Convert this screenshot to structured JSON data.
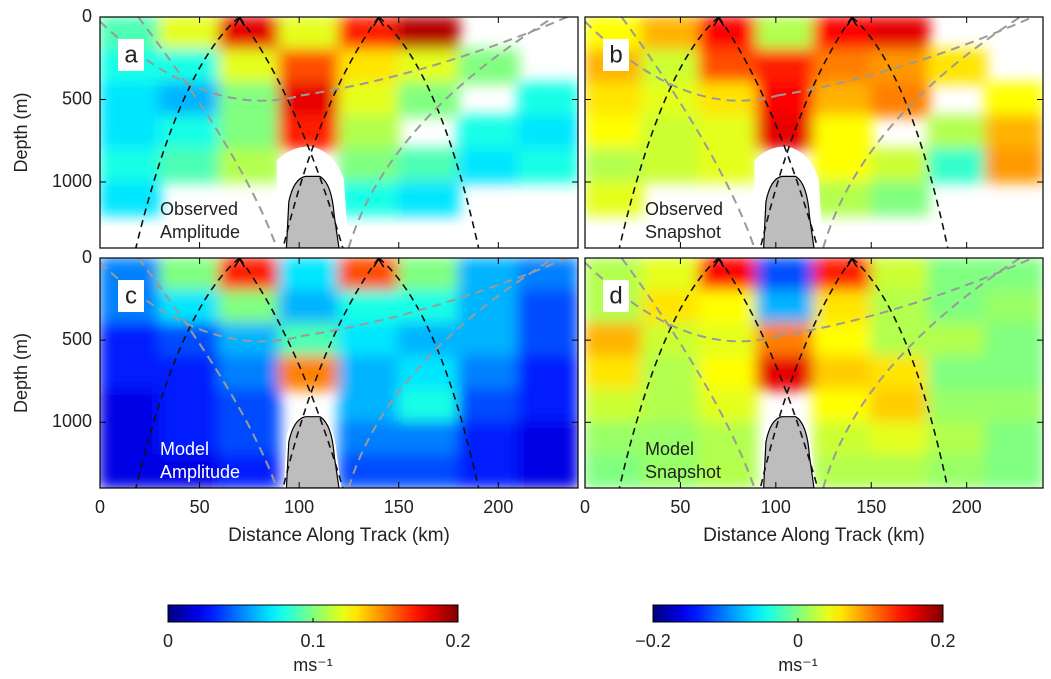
{
  "chart_data": [
    {
      "type": "heatmap",
      "panel_label": "a",
      "annotation": [
        "Observed",
        "Amplitude"
      ],
      "annotation_color": "#222222",
      "ylabel": "Depth (m)",
      "colormap": "jet",
      "clim": [
        0,
        0.2
      ],
      "x": [
        15,
        45,
        75,
        105,
        135,
        165,
        195,
        225
      ],
      "y": [
        100,
        300,
        500,
        700,
        900,
        1100,
        1300
      ],
      "z": [
        [
          0.09,
          0.12,
          0.18,
          0.12,
          0.17,
          0.19,
          null,
          null
        ],
        [
          0.08,
          0.08,
          0.12,
          0.16,
          0.13,
          0.12,
          0.1,
          null
        ],
        [
          0.07,
          0.06,
          0.1,
          0.18,
          0.12,
          0.1,
          null,
          0.08
        ],
        [
          0.07,
          0.08,
          0.1,
          0.17,
          0.11,
          null,
          0.08,
          0.07
        ],
        [
          0.08,
          0.09,
          0.11,
          null,
          0.1,
          0.09,
          0.07,
          0.08
        ],
        [
          0.07,
          null,
          null,
          null,
          0.08,
          0.07,
          null,
          null
        ],
        [
          null,
          null,
          null,
          null,
          null,
          null,
          null,
          null
        ]
      ],
      "xlim": [
        0,
        240
      ],
      "ylim": [
        0,
        1400
      ],
      "y_inverted": true,
      "xticks": [
        0,
        50,
        100,
        150,
        200
      ],
      "yticks": [
        0,
        500,
        1000
      ],
      "xtick_labels": false,
      "ytick_labels": true
    },
    {
      "type": "heatmap",
      "panel_label": "b",
      "annotation": [
        "Observed",
        "Snapshot"
      ],
      "annotation_color": "#222222",
      "colormap": "jet",
      "clim": [
        -0.2,
        0.2
      ],
      "x": [
        15,
        45,
        75,
        105,
        135,
        165,
        195,
        225
      ],
      "y": [
        100,
        300,
        500,
        700,
        900,
        1100,
        1300
      ],
      "z": [
        [
          0.05,
          0.08,
          0.15,
          0.02,
          0.15,
          0.16,
          null,
          null
        ],
        [
          0.08,
          0.03,
          0.12,
          0.14,
          0.1,
          0.09,
          0.06,
          null
        ],
        [
          0.06,
          0.04,
          0.06,
          0.15,
          0.08,
          0.1,
          null,
          0.05
        ],
        [
          0.05,
          0.03,
          0.04,
          0.16,
          0.05,
          null,
          0.02,
          0.08
        ],
        [
          0.02,
          0.03,
          0.04,
          null,
          0.05,
          0.03,
          -0.03,
          0.09
        ],
        [
          0.04,
          null,
          null,
          null,
          0.02,
          0.0,
          null,
          null
        ],
        [
          null,
          null,
          null,
          null,
          null,
          null,
          null,
          null
        ]
      ],
      "xlim": [
        0,
        240
      ],
      "ylim": [
        0,
        1400
      ],
      "y_inverted": true,
      "xticks": [
        0,
        50,
        100,
        150,
        200
      ],
      "yticks": [
        0,
        500,
        1000
      ],
      "xtick_labels": false,
      "ytick_labels": false
    },
    {
      "type": "heatmap",
      "panel_label": "c",
      "annotation": [
        "Model",
        "Amplitude"
      ],
      "annotation_color": "#ffffff",
      "ylabel": "Depth (m)",
      "xlabel": "Distance Along Track (km)",
      "colormap": "jet",
      "clim": [
        0,
        0.2
      ],
      "x": [
        15,
        45,
        75,
        105,
        135,
        165,
        195,
        225
      ],
      "y": [
        100,
        300,
        500,
        700,
        900,
        1100,
        1300
      ],
      "z": [
        [
          0.05,
          0.1,
          0.17,
          0.07,
          0.16,
          0.1,
          0.06,
          0.05
        ],
        [
          0.05,
          0.07,
          0.1,
          0.06,
          0.08,
          0.08,
          0.06,
          0.04
        ],
        [
          0.03,
          0.04,
          0.06,
          0.09,
          0.07,
          0.06,
          0.06,
          0.04
        ],
        [
          0.03,
          0.03,
          0.05,
          0.15,
          0.06,
          0.07,
          0.05,
          0.03
        ],
        [
          0.02,
          0.03,
          0.04,
          null,
          0.06,
          0.08,
          0.04,
          0.03
        ],
        [
          0.02,
          0.03,
          0.04,
          null,
          0.05,
          0.05,
          0.03,
          0.02
        ],
        [
          0.02,
          0.02,
          0.03,
          null,
          0.04,
          0.04,
          0.03,
          0.02
        ]
      ],
      "xlim": [
        0,
        240
      ],
      "ylim": [
        0,
        1400
      ],
      "y_inverted": true,
      "xticks": [
        0,
        50,
        100,
        150,
        200
      ],
      "yticks": [
        0,
        500,
        1000
      ],
      "xtick_labels": true,
      "ytick_labels": true,
      "colorbar": {
        "ticks": [
          0,
          0.1,
          0.2
        ],
        "label": "ms⁻¹"
      }
    },
    {
      "type": "heatmap",
      "panel_label": "d",
      "annotation": [
        "Model",
        "Snapshot"
      ],
      "annotation_color": "#222222",
      "xlabel": "Distance Along Track (km)",
      "colormap": "jet",
      "clim": [
        -0.2,
        0.2
      ],
      "x": [
        15,
        45,
        75,
        105,
        135,
        165,
        195,
        225
      ],
      "y": [
        100,
        300,
        500,
        700,
        900,
        1100,
        1300
      ],
      "z": [
        [
          0.02,
          0.04,
          0.15,
          -0.12,
          0.14,
          0.03,
          0.0,
          0.0
        ],
        [
          0.02,
          0.06,
          0.05,
          -0.08,
          0.06,
          0.02,
          0.0,
          0.01
        ],
        [
          0.08,
          0.03,
          0.04,
          0.1,
          0.05,
          0.02,
          0.02,
          0.0
        ],
        [
          0.06,
          0.02,
          0.05,
          0.16,
          0.07,
          0.06,
          0.0,
          0.0
        ],
        [
          0.03,
          0.02,
          0.04,
          null,
          0.05,
          0.07,
          0.01,
          0.01
        ],
        [
          0.01,
          0.01,
          0.02,
          null,
          0.03,
          0.04,
          0.02,
          0.0
        ],
        [
          0.0,
          0.01,
          0.02,
          null,
          0.02,
          0.02,
          0.01,
          0.0
        ]
      ],
      "xlim": [
        0,
        240
      ],
      "ylim": [
        0,
        1400
      ],
      "y_inverted": true,
      "xticks": [
        0,
        50,
        100,
        150,
        200
      ],
      "yticks": [
        0,
        500,
        1000
      ],
      "xtick_labels": true,
      "ytick_labels": false,
      "colorbar": {
        "ticks": [
          {
            "value": -0.2,
            "label": "−0.2"
          },
          0,
          0.2
        ],
        "label": "ms⁻¹"
      }
    }
  ]
}
